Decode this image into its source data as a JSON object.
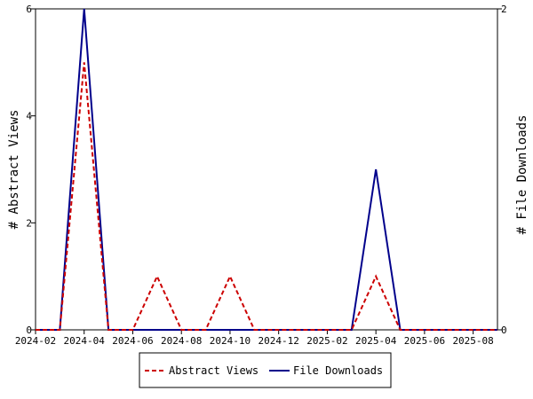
{
  "chart_data": {
    "type": "line",
    "x": [
      "2024-02",
      "2024-03",
      "2024-04",
      "2024-05",
      "2024-06",
      "2024-07",
      "2024-08",
      "2024-09",
      "2024-10",
      "2024-11",
      "2024-12",
      "2025-01",
      "2025-02",
      "2025-03",
      "2025-04",
      "2025-05",
      "2025-06",
      "2025-07",
      "2025-08",
      "2025-09"
    ],
    "x_tick_labels": [
      "2024-02",
      "2024-04",
      "2024-06",
      "2024-08",
      "2024-10",
      "2024-12",
      "2025-02",
      "2025-04",
      "2025-06",
      "2025-08"
    ],
    "series": [
      {
        "name": "Abstract Views",
        "axis": "left",
        "color": "#cc0000",
        "style": "dashed",
        "values": [
          0,
          0,
          5,
          0,
          0,
          1,
          0,
          0,
          1,
          0,
          0,
          0,
          0,
          0,
          1,
          0,
          0,
          0,
          0,
          0
        ]
      },
      {
        "name": "File Downloads",
        "axis": "right",
        "color": "#00008b",
        "style": "solid",
        "values": [
          0,
          0,
          2,
          0,
          0,
          0,
          0,
          0,
          0,
          0,
          0,
          0,
          0,
          0,
          1,
          0,
          0,
          0,
          0,
          0
        ]
      }
    ],
    "ylabel_left": "# Abstract Views",
    "ylabel_right": "# File Downloads",
    "ylim_left": [
      0,
      6
    ],
    "ylim_right": [
      0,
      2
    ],
    "y_ticks_left": [
      "0",
      "2",
      "4",
      "6"
    ],
    "y_ticks_right": [
      "0",
      "2"
    ],
    "grid": false,
    "legend_position": "bottom-center"
  }
}
